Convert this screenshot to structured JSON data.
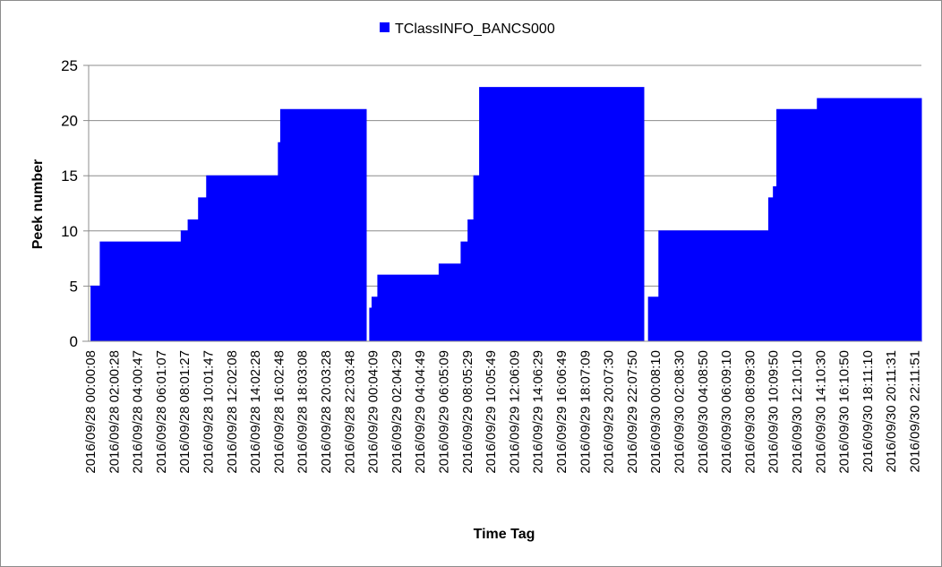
{
  "chart_data": {
    "type": "area",
    "title": "",
    "xlabel": "Time Tag",
    "ylabel": "Peek number",
    "ylim": [
      0,
      25
    ],
    "yticks": [
      0,
      5,
      10,
      15,
      20,
      25
    ],
    "grid": {
      "horizontal": true,
      "vertical": false
    },
    "legend": {
      "position": "top",
      "entries": [
        "TClassINFO_BANCS000"
      ]
    },
    "colors": {
      "series": "#0000ff",
      "grid": "#8c8c8c",
      "axis": "#8c8c8c"
    },
    "x_tick_labels": [
      "2016/09/28 00:00:08",
      "2016/09/28 02:00:28",
      "2016/09/28 04:00:47",
      "2016/09/28 06:01:07",
      "2016/09/28 08:01:27",
      "2016/09/28 10:01:47",
      "2016/09/28 12:02:08",
      "2016/09/28 14:02:28",
      "2016/09/28 16:02:48",
      "2016/09/28 18:03:08",
      "2016/09/28 20:03:28",
      "2016/09/28 22:03:48",
      "2016/09/29 00:04:09",
      "2016/09/29 02:04:29",
      "2016/09/29 04:04:49",
      "2016/09/29 06:05:09",
      "2016/09/29 08:05:29",
      "2016/09/29 10:05:49",
      "2016/09/29 12:06:09",
      "2016/09/29 14:06:29",
      "2016/09/29 16:06:49",
      "2016/09/29 18:07:09",
      "2016/09/29 20:07:30",
      "2016/09/29 22:07:50",
      "2016/09/30 00:08:10",
      "2016/09/30 02:08:30",
      "2016/09/30 04:08:50",
      "2016/09/30 06:09:10",
      "2016/09/30 08:09:30",
      "2016/09/30 10:09:50",
      "2016/09/30 12:10:10",
      "2016/09/30 14:10:30",
      "2016/09/30 16:10:50",
      "2016/09/30 18:11:10",
      "2016/09/30 20:11:31",
      "2016/09/30 22:11:51"
    ],
    "series": [
      {
        "name": "TClassINFO_BANCS000",
        "x_hours": [
          0,
          0.2,
          0.5,
          0.8,
          1.0,
          7.3,
          7.8,
          8.0,
          8.6,
          9.5,
          10.2,
          11.0,
          11.6,
          16.2,
          16.4,
          16.6,
          19.0,
          23.8,
          24.0,
          24.3,
          24.5,
          25.0,
          30.0,
          30.3,
          31.6,
          32.2,
          32.8,
          33.3,
          33.8,
          34.1,
          34.5,
          35.0,
          37.0,
          47.6,
          48.0,
          48.4,
          48.8,
          49.3,
          49.8,
          58.0,
          58.8,
          59.2,
          59.5,
          59.9,
          61.0,
          63.0,
          65.0,
          67.0,
          70.0,
          72.0
        ],
        "y": [
          0,
          5,
          5,
          5,
          9,
          9,
          9,
          10,
          11,
          13,
          15,
          15,
          15,
          15,
          18,
          21,
          21,
          21,
          0,
          3,
          4,
          6,
          6,
          7,
          7,
          9,
          11,
          15,
          23,
          23,
          23,
          23,
          23,
          23,
          0,
          4,
          4,
          10,
          10,
          10,
          13,
          14,
          21,
          21,
          21,
          22,
          22,
          22,
          22,
          22
        ]
      }
    ]
  }
}
